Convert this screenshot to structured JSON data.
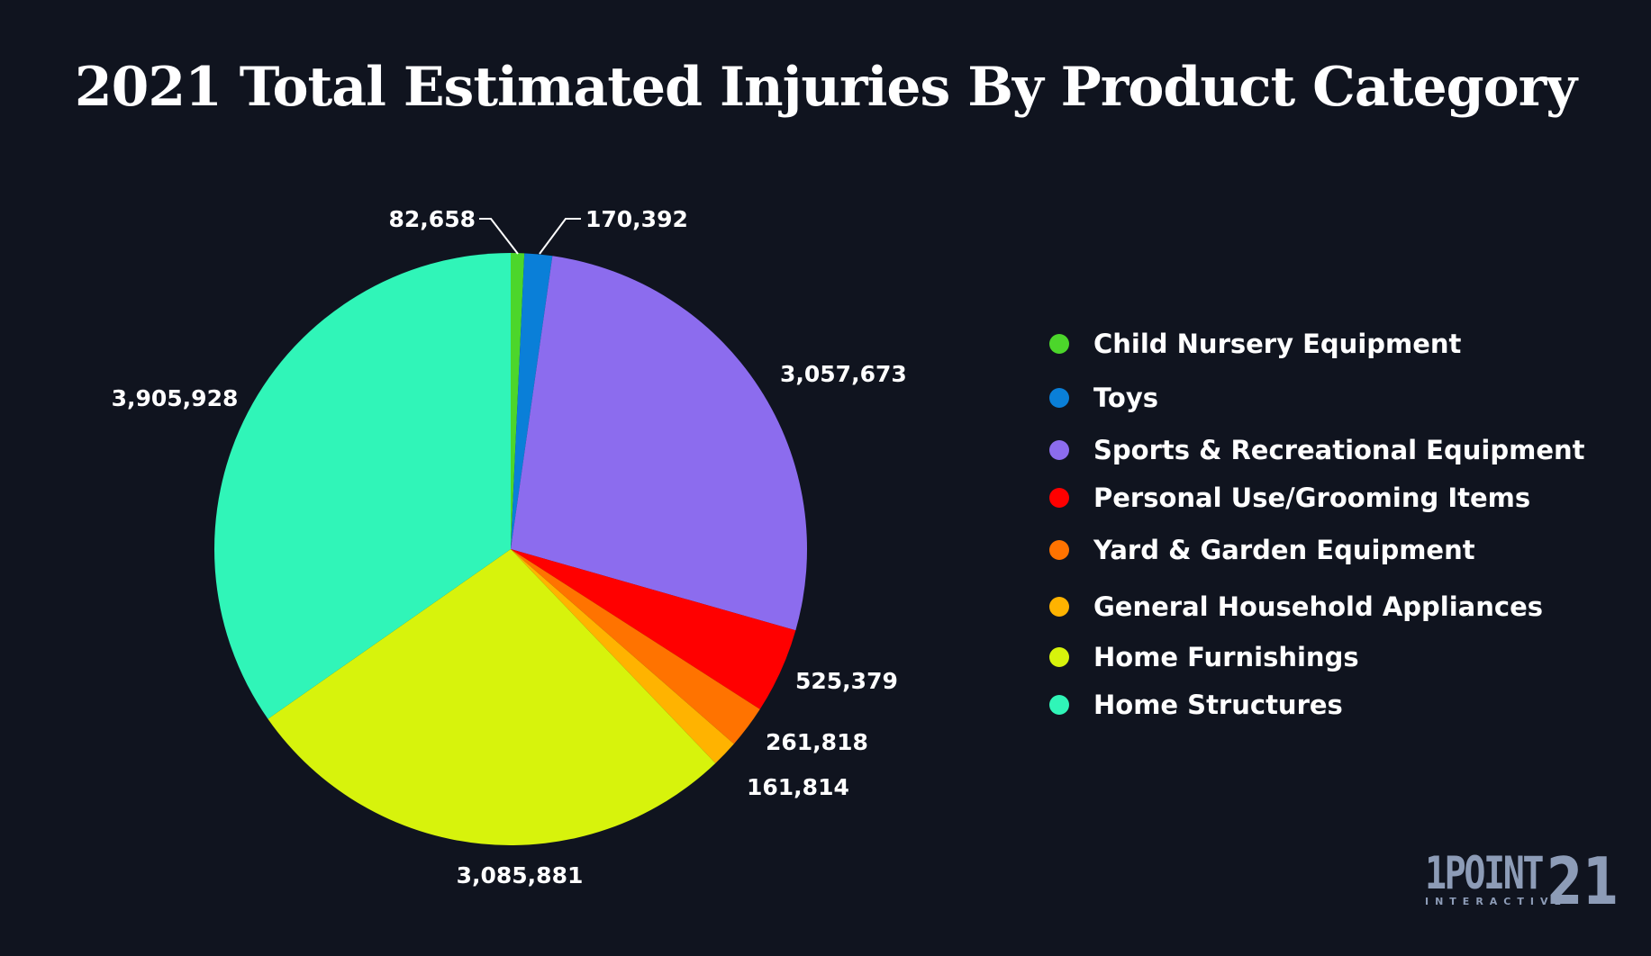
{
  "chart_data": {
    "type": "pie",
    "title": "2021 Total Estimated Injuries By Product Category",
    "start_angle": "12 o'clock, clockwise",
    "legend_placement": "right",
    "slices": [
      {
        "name": "Child Nursery Equipment",
        "value": 82658,
        "label": "82,658",
        "color": "#4cd62b"
      },
      {
        "name": "Toys",
        "value": 170392,
        "label": "170,392",
        "color": "#0a7fd8"
      },
      {
        "name": "Sports & Recreational Equipment",
        "value": 3057673,
        "label": "3,057,673",
        "color": "#8c6cee"
      },
      {
        "name": "Personal Use/Grooming Items",
        "value": 525379,
        "label": "525,379",
        "color": "#ff0000"
      },
      {
        "name": "Yard & Garden Equipment",
        "value": 261818,
        "label": "261,818",
        "color": "#ff7300"
      },
      {
        "name": "General Household Appliances",
        "value": 161814,
        "label": "161,814",
        "color": "#ffb300"
      },
      {
        "name": "Home Furnishings",
        "value": 3085881,
        "label": "3,085,881",
        "color": "#d7f30c"
      },
      {
        "name": "Home Structures",
        "value": 3905928,
        "label": "3,905,928",
        "color": "#30f5b8"
      }
    ]
  },
  "logo": {
    "main": "1POINT",
    "number": "21",
    "sub": "INTERACTIVE"
  },
  "colors": {
    "background": "#10141f",
    "logo": "#8d9cb7"
  }
}
